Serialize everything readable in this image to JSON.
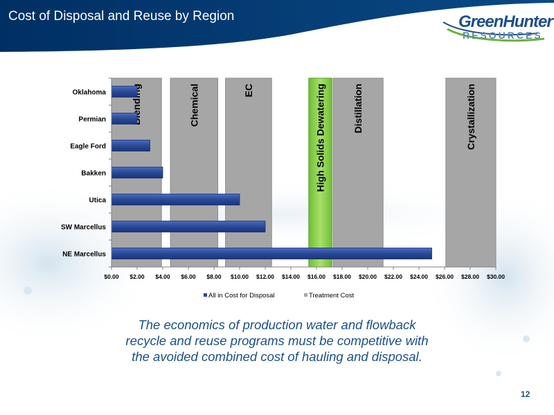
{
  "slide": {
    "title": "Cost of Disposal and Reuse by Region",
    "logo_main": "GreenHunter",
    "logo_sub": "RESOURCES",
    "caption_lines": [
      "The economics of production water and flowback",
      "recycle and reuse programs must be competitive with",
      "the avoided combined cost of hauling and disposal."
    ],
    "page_number": "12"
  },
  "colors": {
    "header": "#003a70",
    "disposal_bar": "#2a4a97",
    "treatment_bar": "#a6a6a6",
    "highlight_bar": "#8fd14f",
    "caption": "#1a4f8c"
  },
  "chart_data": {
    "type": "bar",
    "orientation": "horizontal",
    "categories": [
      "Oklahoma",
      "Permian",
      "Eagle Ford",
      "Bakken",
      "Utica",
      "SW Marcellus",
      "NE Marcellus"
    ],
    "xlim": [
      0,
      30
    ],
    "xticks": [
      0,
      2,
      4,
      6,
      8,
      10,
      12,
      14,
      16,
      18,
      20,
      22,
      24,
      26,
      28,
      30
    ],
    "xtick_labels": [
      "$0.00",
      "$2.00",
      "$4.00",
      "$6.00",
      "$8.00",
      "$10.00",
      "$12.00",
      "$14.00",
      "$16.00",
      "$18.00",
      "$20.00",
      "$22.00",
      "$24.00",
      "$26.00",
      "$28.00",
      "$30.00"
    ],
    "series": [
      {
        "name": "All in Cost for Disposal",
        "values": [
          2.0,
          2.0,
          3.0,
          4.0,
          10.0,
          12.0,
          25.0
        ]
      },
      {
        "name": "Treatment Cost",
        "ranges": [
          {
            "label": "Blending",
            "start": 0.0,
            "end": 3.9
          },
          {
            "label": "Chemical",
            "start": 4.6,
            "end": 8.3
          },
          {
            "label": "EC",
            "start": 8.9,
            "end": 12.5
          },
          {
            "label": "High Solids Dewatering",
            "start": 15.4,
            "end": 17.2,
            "highlight": true
          },
          {
            "label": "Distillation",
            "start": 17.3,
            "end": 21.2
          },
          {
            "label": "Crystallization",
            "start": 26.1,
            "end": 30.0
          }
        ]
      }
    ],
    "legend": [
      "All in Cost for Disposal",
      "Treatment Cost"
    ],
    "legend_position": "bottom",
    "xlabel": "",
    "ylabel": "",
    "grid": false
  }
}
